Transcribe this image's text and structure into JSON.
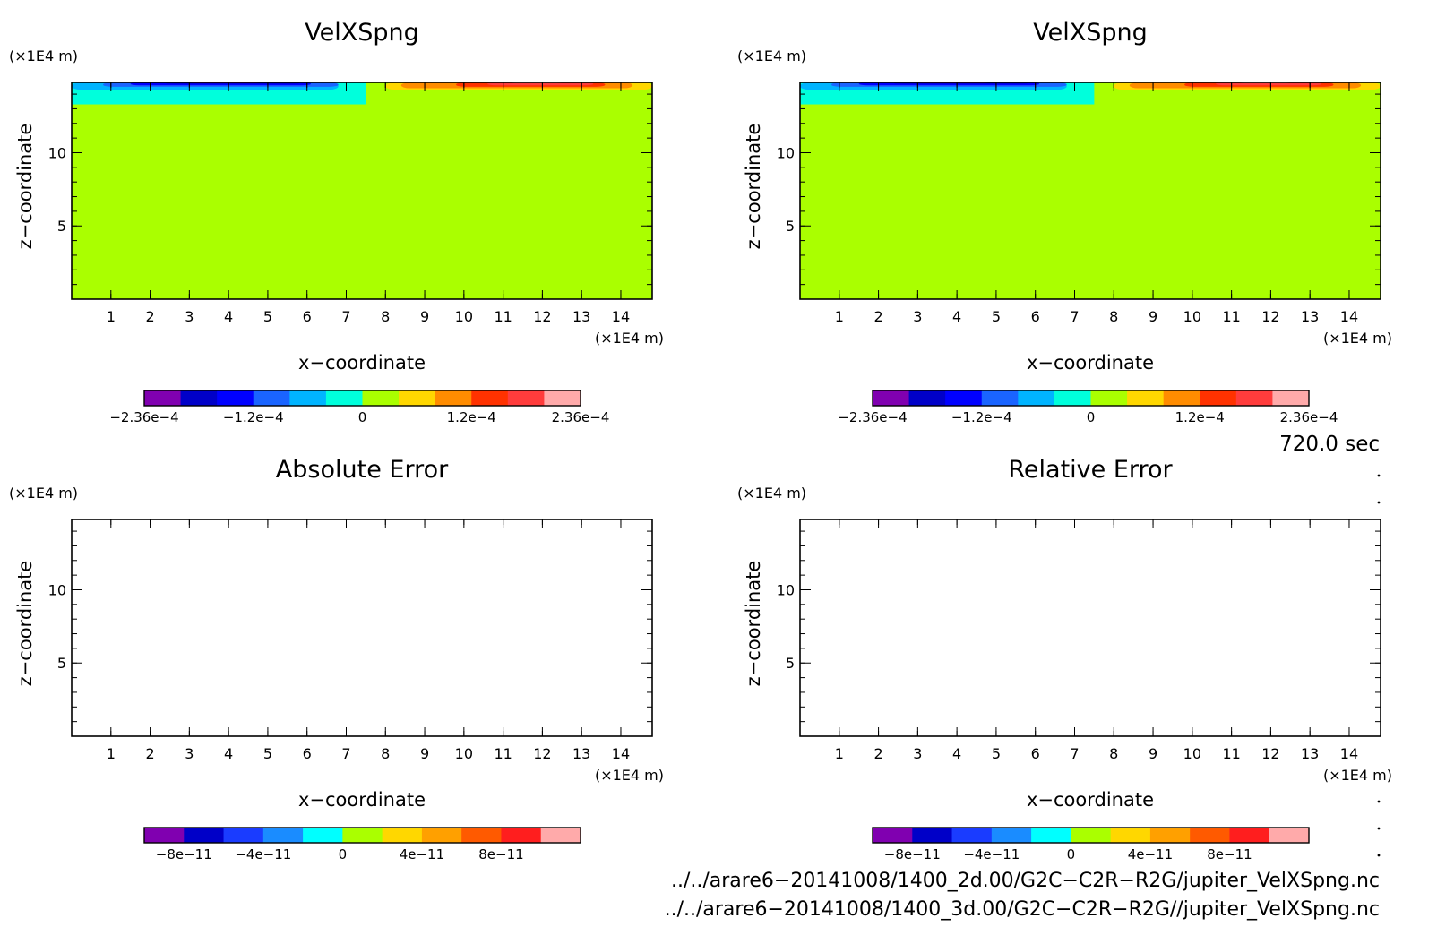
{
  "chart_data": [
    {
      "type": "heatmap",
      "title": "VelXSpng",
      "xlabel": "x−coordinate",
      "ylabel": "z−coordinate",
      "x_unit": "(×1E4 m)",
      "y_unit": "(×1E4 m)",
      "xlim": [
        0,
        14.8
      ],
      "ylim": [
        0,
        14.8
      ],
      "x_ticks": [
        "1",
        "2",
        "3",
        "4",
        "5",
        "6",
        "7",
        "8",
        "9",
        "10",
        "11",
        "12",
        "13",
        "14"
      ],
      "y_ticks": [
        "5",
        "10"
      ],
      "field": "sponge",
      "colorbar": {
        "colors": [
          "#8000b0",
          "#0000c8",
          "#0000ff",
          "#1a64ff",
          "#00b4ff",
          "#00ffdc",
          "#aaff00",
          "#ffd700",
          "#ff8c00",
          "#ff3200",
          "#ff3c3c",
          "#ffaaaa"
        ],
        "labels": [
          "−2.36e−4",
          "−1.2e−4",
          "0",
          "1.2e−4",
          "2.36e−4"
        ],
        "range": [
          -0.000236,
          0.000236
        ]
      }
    },
    {
      "type": "heatmap",
      "title": "VelXSpng",
      "xlabel": "x−coordinate",
      "ylabel": "z−coordinate",
      "x_unit": "(×1E4 m)",
      "y_unit": "(×1E4 m)",
      "xlim": [
        0,
        14.8
      ],
      "ylim": [
        0,
        14.8
      ],
      "x_ticks": [
        "1",
        "2",
        "3",
        "4",
        "5",
        "6",
        "7",
        "8",
        "9",
        "10",
        "11",
        "12",
        "13",
        "14"
      ],
      "y_ticks": [
        "5",
        "10"
      ],
      "field": "sponge",
      "colorbar": {
        "colors": [
          "#8000b0",
          "#0000c8",
          "#0000ff",
          "#1a64ff",
          "#00b4ff",
          "#00ffdc",
          "#aaff00",
          "#ffd700",
          "#ff8c00",
          "#ff3200",
          "#ff3c3c",
          "#ffaaaa"
        ],
        "labels": [
          "−2.36e−4",
          "−1.2e−4",
          "0",
          "1.2e−4",
          "2.36e−4"
        ],
        "range": [
          -0.000236,
          0.000236
        ]
      }
    },
    {
      "type": "heatmap",
      "title": "Absolute Error",
      "xlabel": "x−coordinate",
      "ylabel": "z−coordinate",
      "x_unit": "(×1E4 m)",
      "y_unit": "(×1E4 m)",
      "xlim": [
        0,
        14.8
      ],
      "ylim": [
        0,
        14.8
      ],
      "x_ticks": [
        "1",
        "2",
        "3",
        "4",
        "5",
        "6",
        "7",
        "8",
        "9",
        "10",
        "11",
        "12",
        "13",
        "14"
      ],
      "y_ticks": [
        "5",
        "10"
      ],
      "field": "empty",
      "colorbar": {
        "colors": [
          "#8000b0",
          "#0000c8",
          "#1a3cff",
          "#1a8cff",
          "#00ffff",
          "#aaff00",
          "#ffd700",
          "#ffa000",
          "#ff5a00",
          "#ff1e1e",
          "#ffaaaa"
        ],
        "labels": [
          "−8e−11",
          "−4e−11",
          "0",
          "4e−11",
          "8e−11"
        ],
        "range": [
          -1e-10,
          1e-10
        ]
      }
    },
    {
      "type": "heatmap",
      "title": "Relative Error",
      "xlabel": "x−coordinate",
      "ylabel": "z−coordinate",
      "x_unit": "(×1E4 m)",
      "y_unit": "(×1E4 m)",
      "xlim": [
        0,
        14.8
      ],
      "ylim": [
        0,
        14.8
      ],
      "x_ticks": [
        "1",
        "2",
        "3",
        "4",
        "5",
        "6",
        "7",
        "8",
        "9",
        "10",
        "11",
        "12",
        "13",
        "14"
      ],
      "y_ticks": [
        "5",
        "10"
      ],
      "field": "empty",
      "colorbar": {
        "colors": [
          "#8000b0",
          "#0000c8",
          "#1a3cff",
          "#1a8cff",
          "#00ffff",
          "#aaff00",
          "#ffd700",
          "#ffa000",
          "#ff5a00",
          "#ff1e1e",
          "#ffaaaa"
        ],
        "labels": [
          "−8e−11",
          "−4e−11",
          "0",
          "4e−11",
          "8e−11"
        ],
        "range": [
          -1e-10,
          1e-10
        ]
      }
    }
  ],
  "time_label": "720.0 sec",
  "footer": {
    "path1": "../../arare6−20141008/1400_2d.00/G2C−C2R−R2G/jupiter_VelXSpng.nc",
    "path2": "../../arare6−20141008/1400_3d.00/G2C−C2R−R2G//jupiter_VelXSpng.nc"
  }
}
